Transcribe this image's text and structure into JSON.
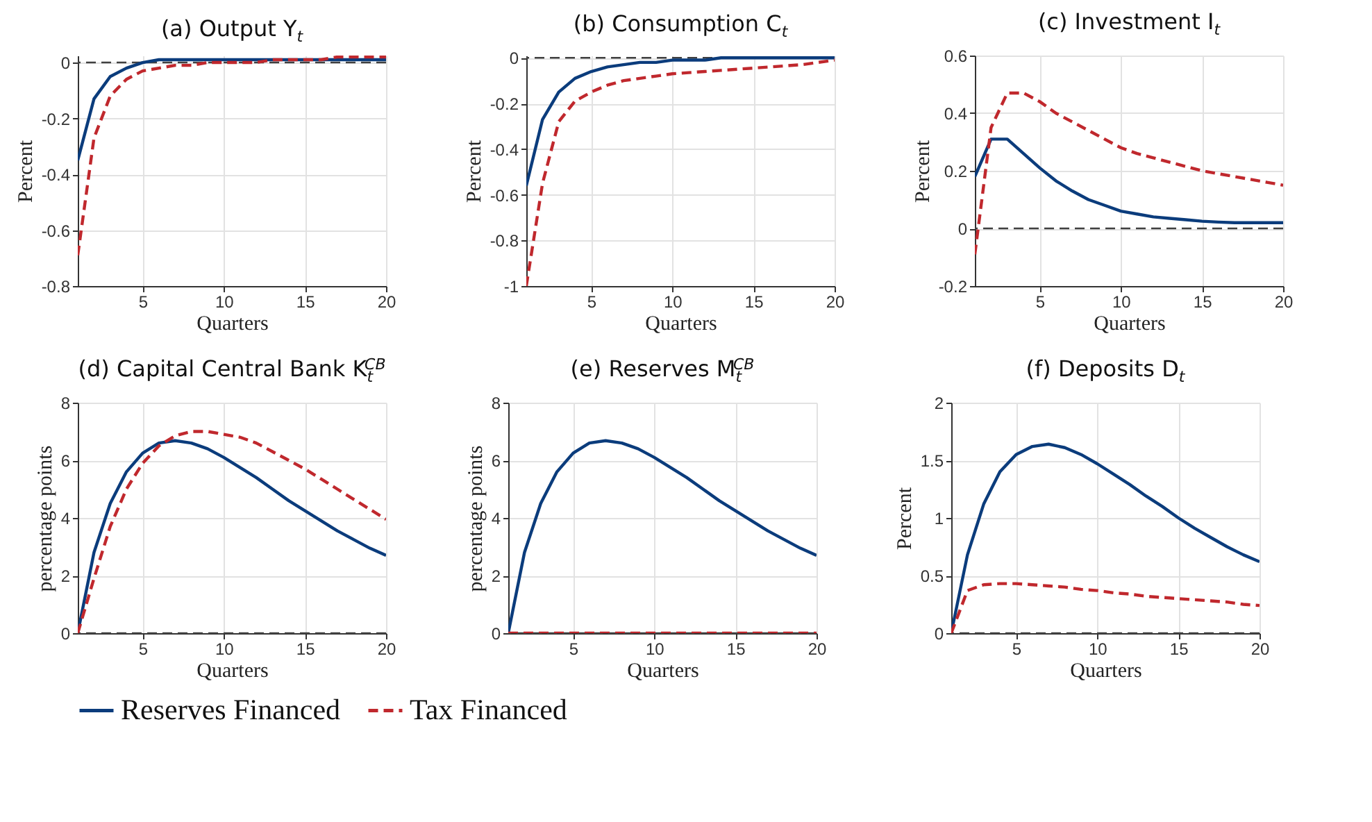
{
  "chart_data": [
    {
      "type": "line",
      "title": "(a) Output Y$_{t}$",
      "xlabel": "Quarters",
      "ylabel": "Percent",
      "x": [
        1,
        2,
        3,
        4,
        5,
        6,
        7,
        8,
        9,
        10,
        11,
        12,
        13,
        14,
        15,
        16,
        17,
        18,
        19,
        20
      ],
      "xlim": [
        1,
        20
      ],
      "xticks": [
        5,
        10,
        15,
        20
      ],
      "ylim": [
        -0.8,
        0.025
      ],
      "yticks": [
        -0.8,
        -0.6,
        -0.4,
        -0.2,
        0
      ],
      "grid": true,
      "legend": "bottom",
      "ref_lines": [
        {
          "axis": "y",
          "value": 0,
          "label": null,
          "color": "#404040",
          "line_style": "dashed"
        }
      ],
      "series": [
        {
          "name": "Reserves Financed",
          "color": "#0b3c7c",
          "line_style": "solid",
          "values": [
            -0.35,
            -0.13,
            -0.05,
            -0.02,
            0,
            0.01,
            0.01,
            0.01,
            0.01,
            0.01,
            0.01,
            0.01,
            0.01,
            0.01,
            0.01,
            0.01,
            0.01,
            0.01,
            0.01,
            0.01
          ]
        },
        {
          "name": "Tax Financed",
          "color": "#c0282d",
          "line_style": "dashed",
          "values": [
            -0.69,
            -0.27,
            -0.12,
            -0.06,
            -0.03,
            -0.02,
            -0.01,
            -0.01,
            0,
            0,
            0,
            0,
            0.01,
            0.01,
            0.01,
            0.01,
            0.02,
            0.02,
            0.02,
            0.02
          ]
        }
      ]
    },
    {
      "type": "line",
      "title": "(b) Consumption C$_{t}$",
      "xlabel": "Quarters",
      "ylabel": "Percent",
      "x": [
        1,
        2,
        3,
        4,
        5,
        6,
        7,
        8,
        9,
        10,
        11,
        12,
        13,
        14,
        15,
        16,
        17,
        18,
        19,
        20
      ],
      "xlim": [
        1,
        20
      ],
      "xticks": [
        5,
        10,
        15,
        20
      ],
      "ylim": [
        -1,
        0.01
      ],
      "yticks": [
        -1,
        -0.8,
        -0.6,
        -0.4,
        -0.2,
        0
      ],
      "grid": true,
      "legend": "bottom",
      "ref_lines": [
        {
          "axis": "y",
          "value": 0,
          "label": null,
          "color": "#404040",
          "line_style": "dashed"
        }
      ],
      "series": [
        {
          "name": "Reserves Financed",
          "color": "#0b3c7c",
          "line_style": "solid",
          "values": [
            -0.56,
            -0.27,
            -0.15,
            -0.09,
            -0.06,
            -0.04,
            -0.03,
            -0.02,
            -0.02,
            -0.01,
            -0.01,
            -0.01,
            0,
            0,
            0,
            0,
            0,
            0,
            0,
            0
          ]
        },
        {
          "name": "Tax Financed",
          "color": "#c0282d",
          "line_style": "dashed",
          "values": [
            -1,
            -0.55,
            -0.28,
            -0.19,
            -0.15,
            -0.12,
            -0.1,
            -0.09,
            -0.08,
            -0.07,
            -0.065,
            -0.06,
            -0.055,
            -0.05,
            -0.045,
            -0.04,
            -0.035,
            -0.03,
            -0.02,
            -0.01
          ]
        }
      ]
    },
    {
      "type": "line",
      "title": "(c) Investment I$_{t}$",
      "xlabel": "Quarters",
      "ylabel": "Percent",
      "x": [
        1,
        2,
        3,
        4,
        5,
        6,
        7,
        8,
        9,
        10,
        11,
        12,
        13,
        14,
        15,
        16,
        17,
        18,
        19,
        20
      ],
      "xlim": [
        1,
        20
      ],
      "xticks": [
        5,
        10,
        15,
        20
      ],
      "ylim": [
        -0.2,
        0.6
      ],
      "yticks": [
        -0.2,
        0,
        0.2,
        0.4,
        0.6
      ],
      "grid": true,
      "legend": "bottom",
      "ref_lines": [
        {
          "axis": "y",
          "value": 0,
          "label": null,
          "color": "#404040",
          "line_style": "dashed"
        }
      ],
      "series": [
        {
          "name": "Reserves Financed",
          "color": "#0b3c7c",
          "line_style": "solid",
          "values": [
            0.18,
            0.31,
            0.31,
            0.26,
            0.21,
            0.165,
            0.13,
            0.1,
            0.08,
            0.06,
            0.05,
            0.04,
            0.035,
            0.03,
            0.025,
            0.022,
            0.02,
            0.02,
            0.02,
            0.02
          ]
        },
        {
          "name": "Tax Financed",
          "color": "#c0282d",
          "line_style": "dashed",
          "values": [
            -0.09,
            0.35,
            0.47,
            0.47,
            0.44,
            0.4,
            0.37,
            0.34,
            0.31,
            0.28,
            0.26,
            0.245,
            0.23,
            0.215,
            0.2,
            0.19,
            0.18,
            0.17,
            0.16,
            0.15
          ]
        }
      ]
    },
    {
      "type": "line",
      "title": "(d) Capital Central Bank K$_{t}$$^{CB}$",
      "xlabel": "Quarters",
      "ylabel": "percentage points",
      "x": [
        1,
        2,
        3,
        4,
        5,
        6,
        7,
        8,
        9,
        10,
        11,
        12,
        13,
        14,
        15,
        16,
        17,
        18,
        19,
        20
      ],
      "xlim": [
        1,
        20
      ],
      "xticks": [
        5,
        10,
        15,
        20
      ],
      "ylim": [
        0,
        8
      ],
      "yticks": [
        0,
        2,
        4,
        6,
        8
      ],
      "grid": true,
      "legend": "bottom",
      "ref_lines": [
        {
          "axis": "y",
          "value": 0,
          "label": null,
          "color": "#404040",
          "line_style": "dashed"
        }
      ],
      "series": [
        {
          "name": "Reserves Financed",
          "color": "#0b3c7c",
          "line_style": "solid",
          "values": [
            0,
            2.8,
            4.5,
            5.6,
            6.25,
            6.6,
            6.68,
            6.6,
            6.4,
            6.1,
            5.75,
            5.4,
            5,
            4.6,
            4.25,
            3.9,
            3.55,
            3.25,
            2.95,
            2.7
          ]
        },
        {
          "name": "Tax Financed",
          "color": "#c0282d",
          "line_style": "dashed",
          "values": [
            0,
            1.9,
            3.7,
            5,
            5.9,
            6.5,
            6.85,
            7,
            7,
            6.9,
            6.8,
            6.6,
            6.3,
            6,
            5.7,
            5.35,
            5,
            4.65,
            4.3,
            3.95
          ]
        }
      ]
    },
    {
      "type": "line",
      "title": "(e) Reserves M$_{t}$$^{CB}$",
      "xlabel": "Quarters",
      "ylabel": "percentage points",
      "x": [
        1,
        2,
        3,
        4,
        5,
        6,
        7,
        8,
        9,
        10,
        11,
        12,
        13,
        14,
        15,
        16,
        17,
        18,
        19,
        20
      ],
      "xlim": [
        1,
        20
      ],
      "xticks": [
        5,
        10,
        15,
        20
      ],
      "ylim": [
        0,
        8
      ],
      "yticks": [
        0,
        2,
        4,
        6,
        8
      ],
      "grid": true,
      "legend": "bottom",
      "ref_lines": [
        {
          "axis": "y",
          "value": 0,
          "label": null,
          "color": "#404040",
          "line_style": "dashed"
        }
      ],
      "series": [
        {
          "name": "Reserves Financed",
          "color": "#0b3c7c",
          "line_style": "solid",
          "values": [
            0,
            2.8,
            4.5,
            5.6,
            6.25,
            6.6,
            6.68,
            6.6,
            6.4,
            6.1,
            5.75,
            5.4,
            5,
            4.6,
            4.25,
            3.9,
            3.55,
            3.25,
            2.95,
            2.7
          ]
        },
        {
          "name": "Tax Financed",
          "color": "#c0282d",
          "line_style": "dashed",
          "values": [
            0,
            0,
            0,
            0,
            0,
            0,
            0,
            0,
            0,
            0,
            0,
            0,
            0,
            0,
            0,
            0,
            0,
            0,
            0,
            0
          ]
        }
      ]
    },
    {
      "type": "line",
      "title": "(f) Deposits D$_{t}$",
      "xlabel": "Quarters",
      "ylabel": "Percent",
      "x": [
        1,
        2,
        3,
        4,
        5,
        6,
        7,
        8,
        9,
        10,
        11,
        12,
        13,
        14,
        15,
        16,
        17,
        18,
        19,
        20
      ],
      "xlim": [
        1,
        20
      ],
      "xticks": [
        5,
        10,
        15,
        20
      ],
      "ylim": [
        0,
        2
      ],
      "yticks": [
        0,
        0.5,
        1,
        1.5,
        2
      ],
      "grid": true,
      "legend": "bottom",
      "ref_lines": [
        {
          "axis": "y",
          "value": 0,
          "label": null,
          "color": "#404040",
          "line_style": "dashed"
        }
      ],
      "series": [
        {
          "name": "Reserves Financed",
          "color": "#0b3c7c",
          "line_style": "solid",
          "values": [
            0,
            0.68,
            1.12,
            1.4,
            1.55,
            1.62,
            1.64,
            1.61,
            1.55,
            1.47,
            1.38,
            1.29,
            1.19,
            1.1,
            1,
            0.91,
            0.83,
            0.75,
            0.68,
            0.62
          ]
        },
        {
          "name": "Tax Financed",
          "color": "#c0282d",
          "line_style": "dashed",
          "values": [
            0,
            0.37,
            0.42,
            0.43,
            0.43,
            0.42,
            0.41,
            0.4,
            0.38,
            0.37,
            0.35,
            0.34,
            0.32,
            0.31,
            0.3,
            0.29,
            0.28,
            0.27,
            0.25,
            0.24
          ]
        }
      ]
    }
  ]
}
